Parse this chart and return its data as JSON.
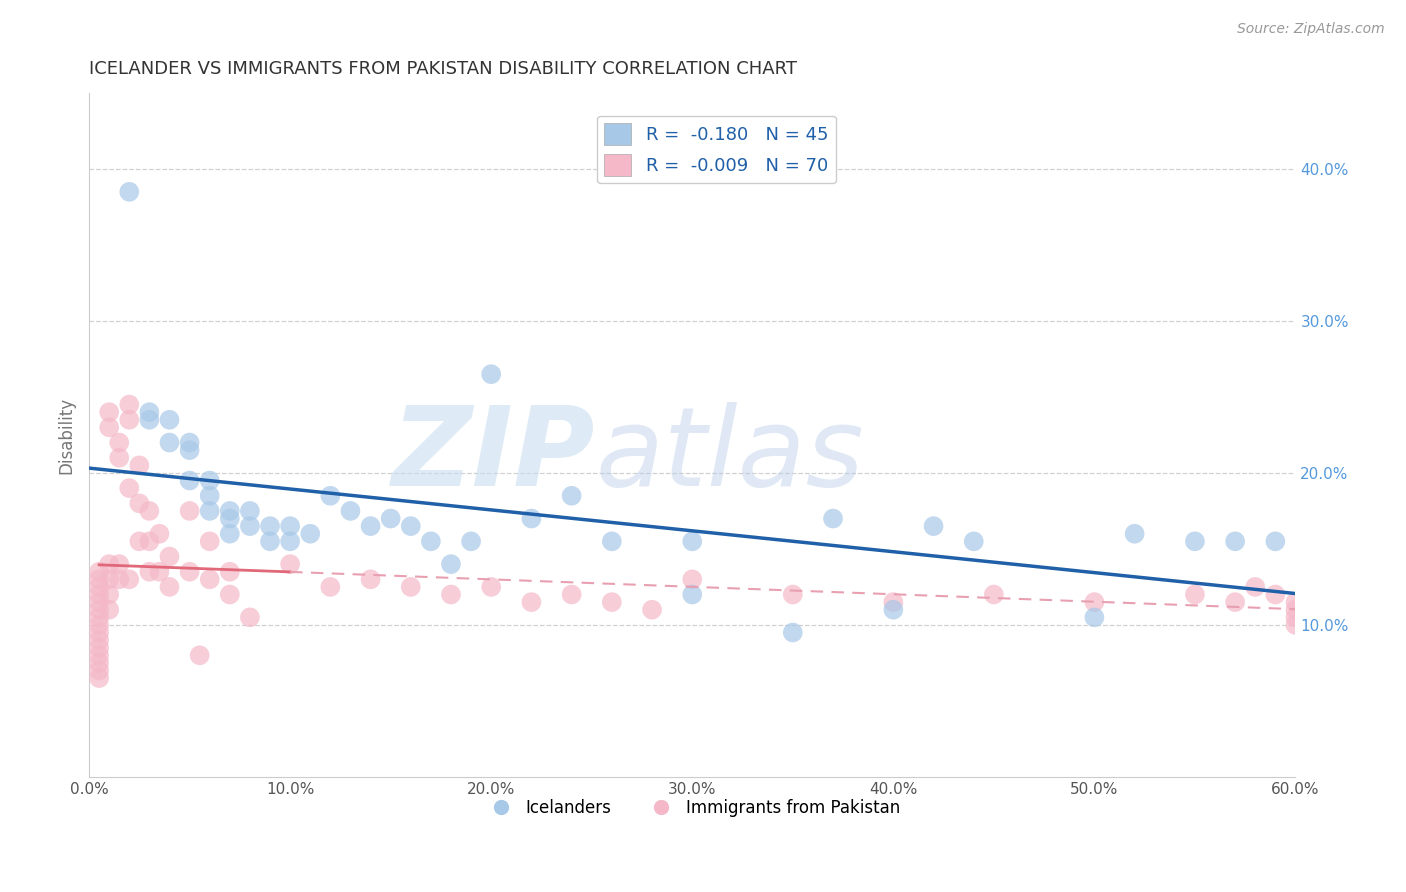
{
  "title": "ICELANDER VS IMMIGRANTS FROM PAKISTAN DISABILITY CORRELATION CHART",
  "source": "Source: ZipAtlas.com",
  "xlabel_label": "Icelanders",
  "xlabel_label2": "Immigrants from Pakistan",
  "ylabel": "Disability",
  "xlim": [
    0.0,
    0.6
  ],
  "ylim": [
    0.0,
    0.45
  ],
  "xticks": [
    0.0,
    0.1,
    0.2,
    0.3,
    0.4,
    0.5,
    0.6
  ],
  "yticks": [
    0.1,
    0.2,
    0.3,
    0.4
  ],
  "legend_r1": "-0.180",
  "legend_n1": "45",
  "legend_r2": "-0.009",
  "legend_n2": "70",
  "blue_color": "#a8c8e8",
  "pink_color": "#f4b8c8",
  "blue_line_color": "#2060a8",
  "pink_line_color": "#e06878",
  "pink_line_dashed_color": "#e8a0b0",
  "background_color": "#ffffff",
  "grid_color": "#cccccc",
  "icelanders_x": [
    0.02,
    0.03,
    0.03,
    0.04,
    0.04,
    0.05,
    0.05,
    0.05,
    0.06,
    0.06,
    0.06,
    0.07,
    0.07,
    0.07,
    0.08,
    0.08,
    0.09,
    0.09,
    0.1,
    0.1,
    0.11,
    0.12,
    0.13,
    0.14,
    0.15,
    0.16,
    0.17,
    0.18,
    0.19,
    0.2,
    0.22,
    0.24,
    0.26,
    0.3,
    0.3,
    0.35,
    0.37,
    0.4,
    0.42,
    0.44,
    0.5,
    0.52,
    0.55,
    0.57,
    0.59
  ],
  "icelanders_y": [
    0.385,
    0.24,
    0.235,
    0.235,
    0.22,
    0.22,
    0.215,
    0.195,
    0.195,
    0.185,
    0.175,
    0.175,
    0.17,
    0.16,
    0.175,
    0.165,
    0.165,
    0.155,
    0.165,
    0.155,
    0.16,
    0.185,
    0.175,
    0.165,
    0.17,
    0.165,
    0.155,
    0.14,
    0.155,
    0.265,
    0.17,
    0.185,
    0.155,
    0.12,
    0.155,
    0.095,
    0.17,
    0.11,
    0.165,
    0.155,
    0.105,
    0.16,
    0.155,
    0.155,
    0.155
  ],
  "pakistan_x": [
    0.005,
    0.005,
    0.005,
    0.005,
    0.005,
    0.005,
    0.005,
    0.005,
    0.005,
    0.005,
    0.005,
    0.005,
    0.005,
    0.005,
    0.005,
    0.01,
    0.01,
    0.01,
    0.01,
    0.01,
    0.01,
    0.015,
    0.015,
    0.015,
    0.015,
    0.02,
    0.02,
    0.02,
    0.02,
    0.025,
    0.025,
    0.025,
    0.03,
    0.03,
    0.03,
    0.035,
    0.035,
    0.04,
    0.04,
    0.05,
    0.05,
    0.055,
    0.06,
    0.06,
    0.07,
    0.07,
    0.08,
    0.1,
    0.12,
    0.14,
    0.16,
    0.18,
    0.2,
    0.22,
    0.24,
    0.26,
    0.28,
    0.3,
    0.35,
    0.4,
    0.45,
    0.5,
    0.55,
    0.57,
    0.58,
    0.59,
    0.6,
    0.6,
    0.6,
    0.6
  ],
  "pakistan_y": [
    0.135,
    0.13,
    0.125,
    0.12,
    0.115,
    0.11,
    0.105,
    0.1,
    0.095,
    0.09,
    0.085,
    0.08,
    0.075,
    0.07,
    0.065,
    0.24,
    0.23,
    0.14,
    0.13,
    0.12,
    0.11,
    0.22,
    0.21,
    0.14,
    0.13,
    0.245,
    0.235,
    0.19,
    0.13,
    0.205,
    0.18,
    0.155,
    0.175,
    0.155,
    0.135,
    0.16,
    0.135,
    0.145,
    0.125,
    0.175,
    0.135,
    0.08,
    0.155,
    0.13,
    0.135,
    0.12,
    0.105,
    0.14,
    0.125,
    0.13,
    0.125,
    0.12,
    0.125,
    0.115,
    0.12,
    0.115,
    0.11,
    0.13,
    0.12,
    0.115,
    0.12,
    0.115,
    0.12,
    0.115,
    0.125,
    0.12,
    0.115,
    0.11,
    0.105,
    0.1
  ]
}
